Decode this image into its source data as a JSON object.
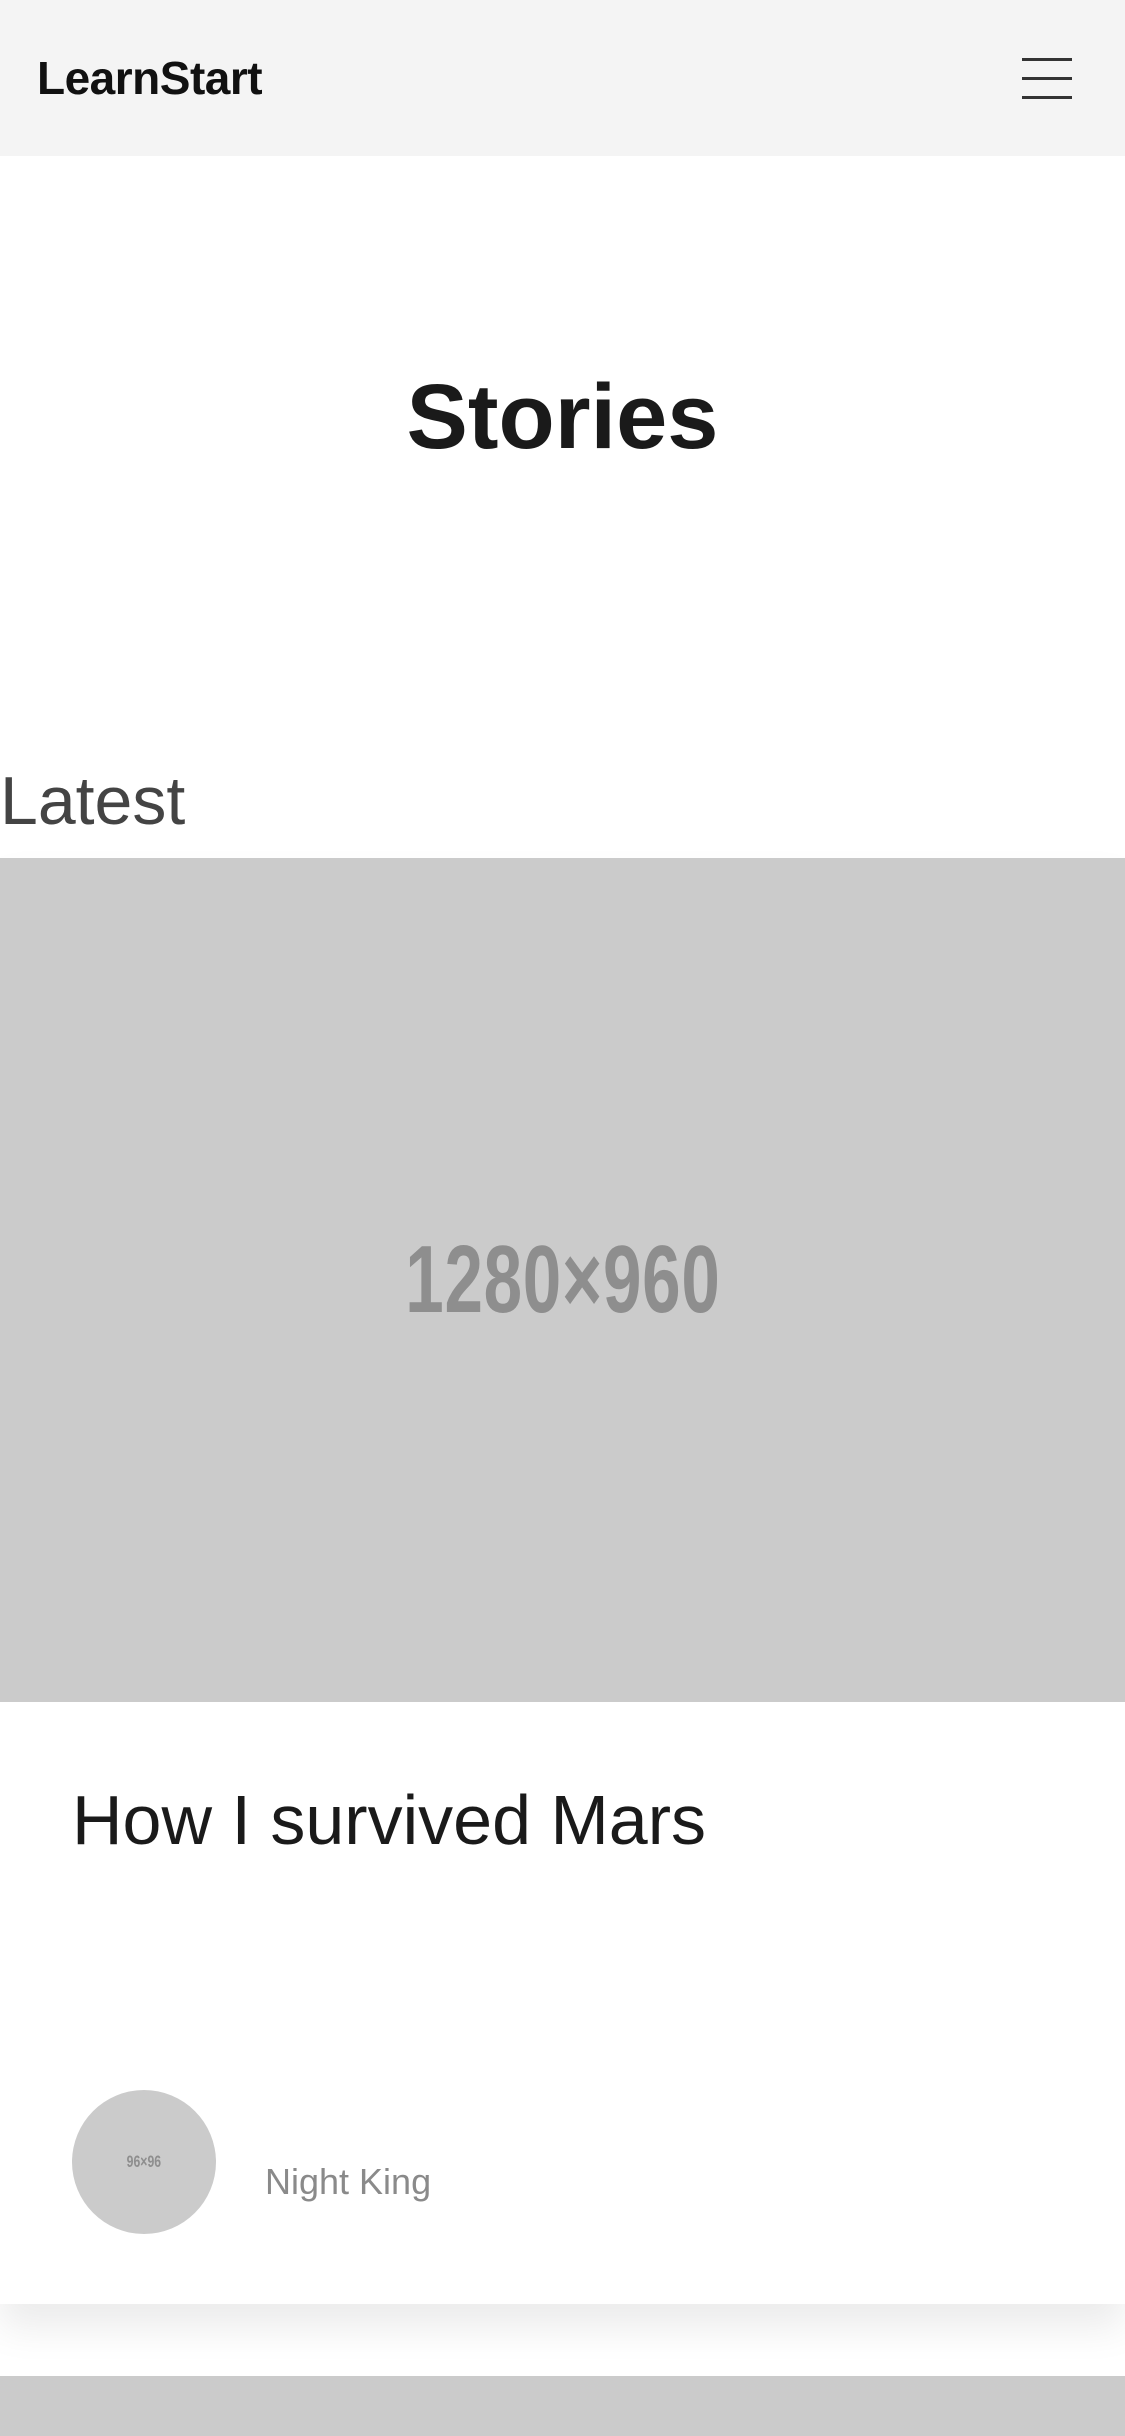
{
  "header": {
    "brand": "LearnStart",
    "menu_icon": "hamburger-menu-icon"
  },
  "page": {
    "title": "Stories"
  },
  "sections": {
    "latest_label": "Latest"
  },
  "featured_story": {
    "image_placeholder": "1280×960",
    "title": "How I survived Mars",
    "author": {
      "name": "Night King",
      "avatar_placeholder": "96×96"
    }
  },
  "colors": {
    "topbar_bg": "#f4f4f4",
    "placeholder_bg": "#cbcbcb",
    "placeholder_text": "#8e8e8e",
    "heading_text": "#1a1a1a",
    "muted_text": "#8a8a8a"
  }
}
